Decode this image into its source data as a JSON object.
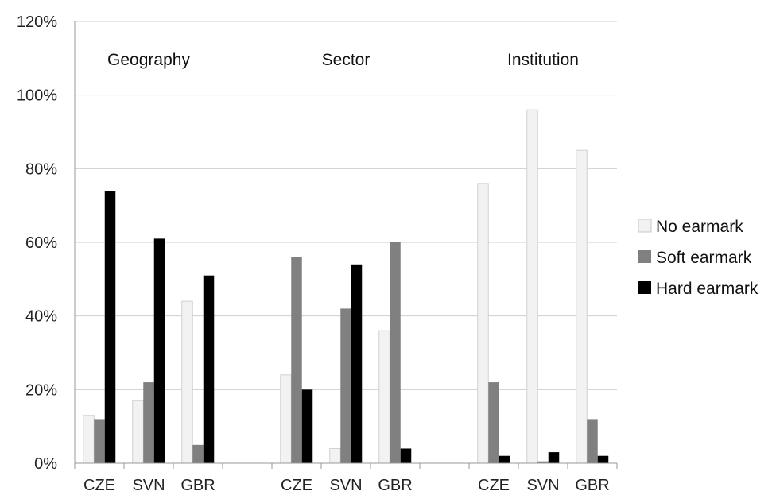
{
  "chart_data": {
    "type": "bar",
    "title": "",
    "xlabel": "",
    "ylabel": "",
    "ylim": [
      0,
      120
    ],
    "yticks": [
      "0%",
      "20%",
      "40%",
      "60%",
      "80%",
      "100%",
      "120%"
    ],
    "grid": true,
    "legend_position": "right",
    "groups": [
      "Geography",
      "Sector",
      "Institution"
    ],
    "categories": [
      "CZE",
      "SVN",
      "GBR",
      "",
      "CZE",
      "SVN",
      "GBR",
      "",
      "CZE",
      "SVN",
      "GBR"
    ],
    "series": [
      {
        "name": "No earmark",
        "color": "#f2f2f2",
        "values": [
          13,
          17,
          44,
          null,
          24,
          4,
          36,
          null,
          76,
          96,
          85
        ]
      },
      {
        "name": "Soft earmark",
        "color": "#808080",
        "values": [
          12,
          22,
          5,
          null,
          56,
          42,
          60,
          null,
          22,
          0.5,
          12
        ]
      },
      {
        "name": "Hard earmark",
        "color": "#000000",
        "values": [
          74,
          61,
          51,
          null,
          20,
          54,
          4,
          null,
          2,
          3,
          2
        ]
      }
    ]
  }
}
